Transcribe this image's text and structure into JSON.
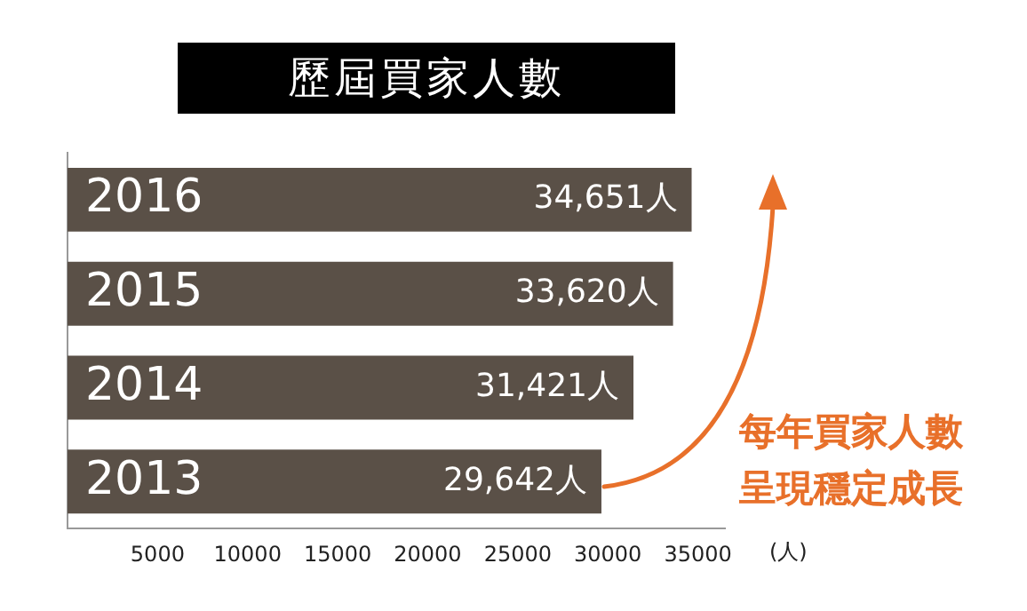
{
  "chart_data": {
    "type": "bar",
    "orientation": "horizontal",
    "title": "歷屆買家人數",
    "categories": [
      "2016",
      "2015",
      "2014",
      "2013"
    ],
    "values": [
      34651,
      33620,
      31421,
      29642
    ],
    "value_labels": [
      "34,651人",
      "33,620人",
      "31,421人",
      "29,642人"
    ],
    "color": "#5a5047",
    "xlim": [
      0,
      36500
    ],
    "xticks": [
      5000,
      10000,
      15000,
      20000,
      25000,
      30000,
      35000
    ],
    "xlabel": "(人)",
    "grid": false,
    "annotations": [
      "每年買家人數",
      "呈現穩定成長"
    ]
  }
}
